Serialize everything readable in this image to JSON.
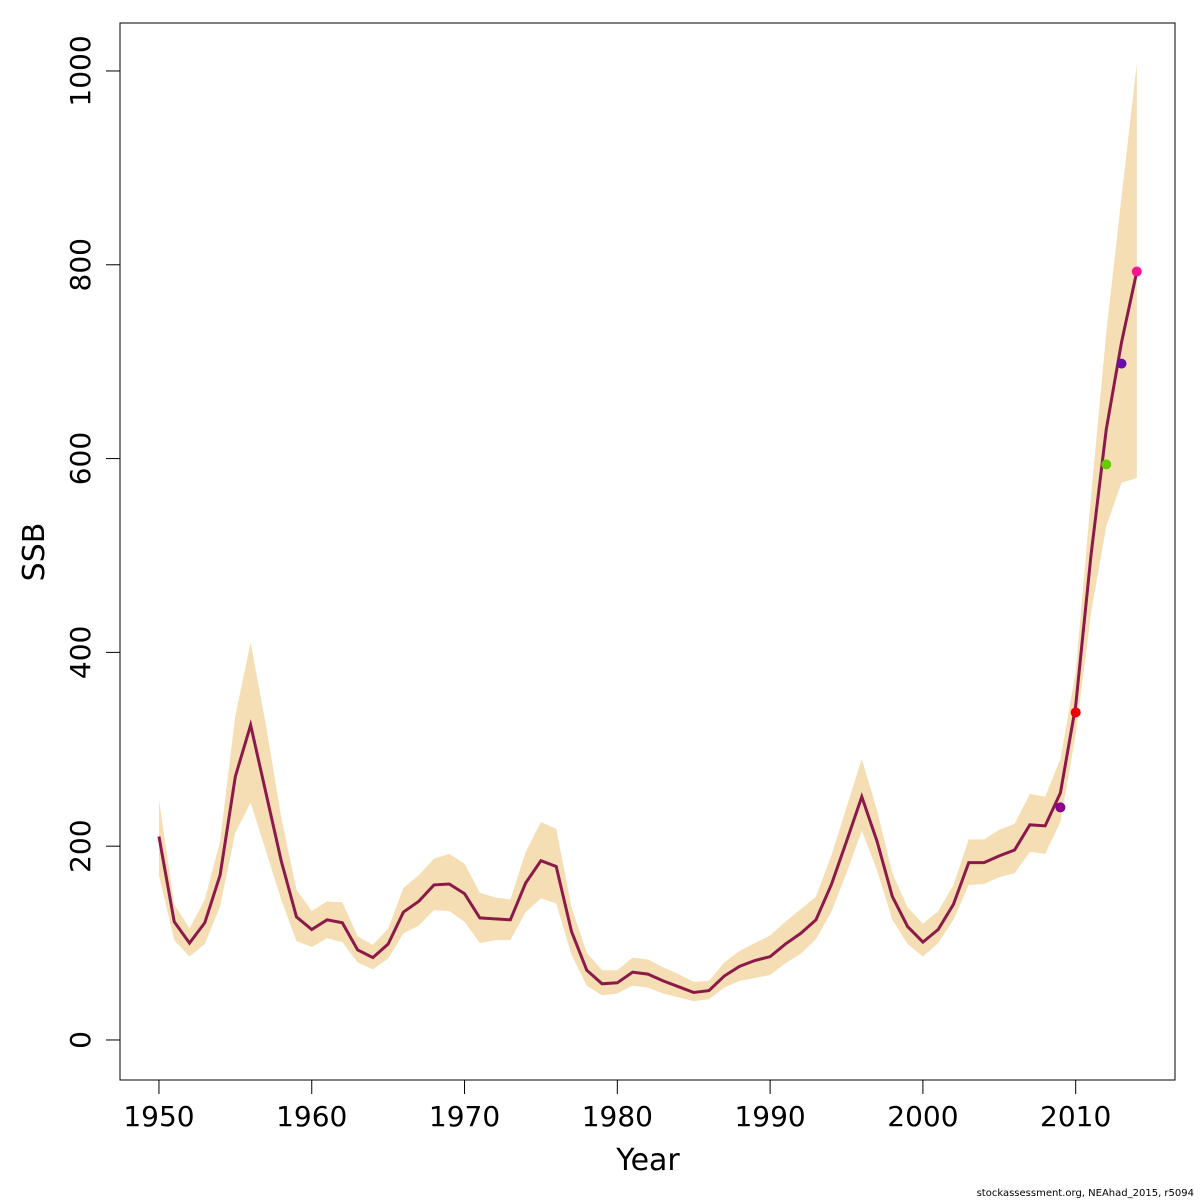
{
  "chart_data": {
    "type": "line",
    "xlabel": "Year",
    "ylabel": "SSB",
    "caption": "stockassessment.org, NEAhad_2015, r5094",
    "x": [
      1950,
      1951,
      1952,
      1953,
      1954,
      1955,
      1956,
      1957,
      1958,
      1959,
      1960,
      1961,
      1962,
      1963,
      1964,
      1965,
      1966,
      1967,
      1968,
      1969,
      1970,
      1971,
      1972,
      1973,
      1974,
      1975,
      1976,
      1977,
      1978,
      1979,
      1980,
      1981,
      1982,
      1983,
      1984,
      1985,
      1986,
      1987,
      1988,
      1989,
      1990,
      1991,
      1992,
      1993,
      1994,
      1995,
      1996,
      1997,
      1998,
      1999,
      2000,
      2001,
      2002,
      2003,
      2004,
      2005,
      2006,
      2007,
      2008,
      2009,
      2010,
      2011,
      2012,
      2013,
      2014
    ],
    "series": [
      {
        "color": "#8b1a4a",
        "values": [
          210,
          122,
          100,
          121,
          170,
          272,
          325,
          255,
          185,
          127,
          114,
          124,
          121,
          93,
          85,
          99,
          132,
          143,
          160,
          161,
          151,
          126,
          125,
          124,
          162,
          185,
          179,
          112,
          72,
          58,
          59,
          70,
          68,
          61,
          55,
          49,
          51,
          66,
          76,
          82,
          86,
          99,
          110,
          124,
          160,
          205,
          251,
          205,
          148,
          117,
          101,
          114,
          140,
          183,
          183,
          190,
          196,
          222,
          221,
          255,
          345,
          500,
          630,
          720,
          793
        ]
      }
    ],
    "band": {
      "color": "#f5deb3",
      "upper": [
        248,
        140,
        115,
        145,
        205,
        335,
        410,
        325,
        230,
        155,
        133,
        143,
        142,
        107,
        98,
        115,
        157,
        170,
        187,
        192,
        182,
        152,
        147,
        145,
        194,
        225,
        218,
        137,
        90,
        72,
        72,
        85,
        83,
        75,
        68,
        60,
        61,
        80,
        92,
        100,
        108,
        122,
        135,
        148,
        190,
        240,
        290,
        237,
        172,
        137,
        120,
        133,
        160,
        207,
        207,
        217,
        223,
        254,
        251,
        290,
        380,
        560,
        730,
        870,
        1008
      ],
      "lower": [
        170,
        103,
        86,
        99,
        138,
        214,
        245,
        195,
        145,
        102,
        96,
        105,
        101,
        80,
        73,
        84,
        110,
        118,
        134,
        133,
        122,
        100,
        103,
        103,
        132,
        146,
        141,
        88,
        56,
        46,
        48,
        56,
        54,
        48,
        44,
        40,
        42,
        54,
        61,
        64,
        67,
        79,
        89,
        104,
        132,
        172,
        216,
        175,
        124,
        99,
        86,
        100,
        124,
        160,
        161,
        168,
        172,
        194,
        192,
        225,
        315,
        440,
        530,
        575,
        580
      ]
    },
    "points": {
      "x": [
        2009,
        2010,
        2012,
        2013,
        2014
      ],
      "values": [
        240,
        338,
        594,
        698,
        793
      ],
      "colors": [
        "#8b008b",
        "#ee0000",
        "#66cc00",
        "#6a0dad",
        "#ff1493"
      ]
    },
    "xlim": [
      1947.45,
      2016.5
    ],
    "ylim": [
      -41.3,
      1049.5
    ],
    "xticks": [
      1950,
      1960,
      1970,
      1980,
      1990,
      2000,
      2010
    ],
    "yticks": [
      0,
      200,
      400,
      600,
      800,
      1000
    ]
  }
}
